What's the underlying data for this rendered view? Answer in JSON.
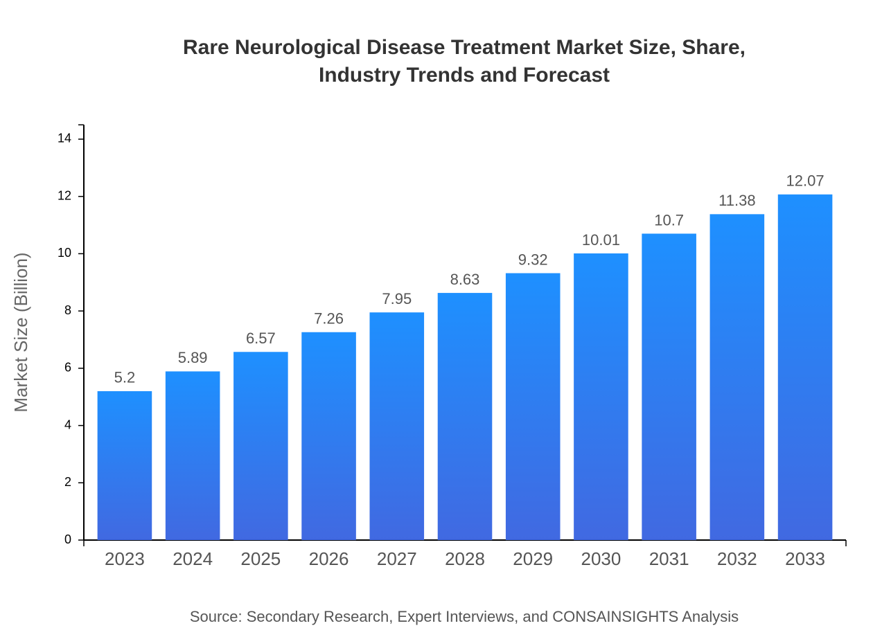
{
  "chart_data": {
    "type": "bar",
    "title": [
      "Rare Neurological Disease Treatment Market Size, Share,",
      "Industry Trends and Forecast"
    ],
    "y_label": "Market Size (Billion)",
    "source": "Source: Secondary Research, Expert Interviews, and CONSAINSIGHTS Analysis",
    "categories": [
      "2023",
      "2024",
      "2025",
      "2026",
      "2027",
      "2028",
      "2029",
      "2030",
      "2031",
      "2032",
      "2033"
    ],
    "values": [
      5.2,
      5.89,
      6.57,
      7.26,
      7.95,
      8.63,
      9.32,
      10.01,
      10.7,
      11.38,
      12.07
    ],
    "color_top": "#1e90ff",
    "color_bottom": "#4169e1",
    "ylim": [
      0,
      14.5
    ],
    "yticks": [
      0,
      2,
      4,
      6,
      8,
      10,
      12,
      14
    ],
    "grid": false
  }
}
